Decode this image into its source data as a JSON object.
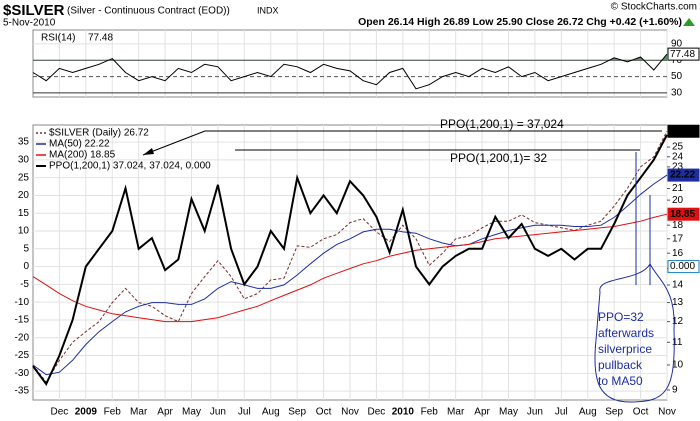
{
  "header": {
    "symbol": "$SILVER",
    "description": "(Silver - Continuous Contract (EOD))",
    "exchange": "INDX",
    "date": "5-Nov-2010",
    "quote": "Open 26.14 High 26.89 Low 25.90 Close 26.72 Chg +0.42 (+1.60%)",
    "copyright": "© StockCharts.com"
  },
  "chart_data": [
    {
      "type": "line",
      "title": "RSI(14)",
      "color": "#000000",
      "fill_color": "#5f8f5f",
      "threshold": 70,
      "grid": true,
      "categories": [
        null,
        null,
        "Dec",
        null,
        "2009",
        null,
        "Feb",
        null,
        "Mar",
        null,
        "Apr",
        null,
        "May",
        null,
        "Jun",
        null,
        "Jul",
        null,
        "Aug",
        null,
        "Sep",
        null,
        "Oct",
        null,
        "Nov",
        null,
        "Dec",
        null,
        "2010",
        null,
        "Feb",
        null,
        "Mar",
        null,
        "Apr",
        null,
        "May",
        null,
        "Jun",
        null,
        "Jul",
        null,
        "Aug",
        null,
        "Sep",
        null,
        "Oct",
        null,
        "Nov"
      ],
      "values": [
        55,
        45,
        60,
        55,
        60,
        65,
        72,
        55,
        45,
        50,
        45,
        60,
        55,
        65,
        62,
        45,
        50,
        55,
        50,
        65,
        62,
        55,
        65,
        60,
        57,
        45,
        40,
        55,
        60,
        35,
        40,
        50,
        55,
        50,
        60,
        55,
        62,
        50,
        55,
        45,
        50,
        55,
        60,
        65,
        73,
        68,
        74,
        58,
        77.48
      ],
      "ylim": [
        25,
        107
      ],
      "yticks": [
        90,
        70,
        50,
        30
      ]
    },
    {
      "type": "line",
      "grid": true,
      "categories": [
        null,
        null,
        "Dec",
        null,
        "2009",
        null,
        "Feb",
        null,
        "Mar",
        null,
        "Apr",
        null,
        "May",
        null,
        "Jun",
        null,
        "Jul",
        null,
        "Aug",
        null,
        "Sep",
        null,
        "Oct",
        null,
        "Nov",
        null,
        "Dec",
        null,
        "2010",
        null,
        "Feb",
        null,
        "Mar",
        null,
        "Apr",
        null,
        "May",
        null,
        "Jun",
        null,
        "Jul",
        null,
        "Aug",
        null,
        "Sep",
        null,
        "Oct",
        null,
        "Nov"
      ],
      "series": [
        {
          "name": "$SILVER (Daily) 26.72",
          "color": "#7a2a2a",
          "dashed": true,
          "axis": "y2",
          "values": [
            10.0,
            9.3,
            10.2,
            11.0,
            11.5,
            12.0,
            13.0,
            13.8,
            13.0,
            12.8,
            12.3,
            12.0,
            13.5,
            14.5,
            15.5,
            14.5,
            13.2,
            13.5,
            14.3,
            14.4,
            16.5,
            16.4,
            17.0,
            17.3,
            18.2,
            18.5,
            17.5,
            16.8,
            18.0,
            17.0,
            15.2,
            16.0,
            17.0,
            17.2,
            17.8,
            18.3,
            18.3,
            18.8,
            18.2,
            18.0,
            17.8,
            17.6,
            18.0,
            18.3,
            19.5,
            21.0,
            23.0,
            24.0,
            26.72
          ]
        },
        {
          "name": "MA(50) 22.22",
          "color": "#1c2ea0",
          "axis": "y2",
          "values": [
            10.0,
            9.6,
            9.7,
            10.2,
            10.9,
            11.5,
            12.0,
            12.5,
            12.8,
            13.0,
            13.0,
            12.9,
            12.9,
            13.2,
            13.8,
            14.2,
            14.0,
            13.8,
            13.8,
            14.0,
            14.6,
            15.3,
            16.0,
            16.6,
            17.0,
            17.5,
            17.7,
            17.7,
            17.5,
            17.4,
            17.0,
            16.7,
            16.5,
            16.6,
            17.0,
            17.3,
            17.6,
            17.8,
            18.0,
            18.0,
            18.0,
            17.9,
            17.9,
            18.0,
            18.6,
            19.5,
            20.5,
            21.4,
            22.22
          ]
        },
        {
          "name": "MA(200) 18.85",
          "color": "#e01010",
          "axis": "y2",
          "values": [
            14.5,
            14.0,
            13.5,
            13.1,
            12.8,
            12.6,
            12.4,
            12.3,
            12.2,
            12.1,
            12.0,
            12.0,
            12.0,
            12.1,
            12.2,
            12.4,
            12.6,
            12.8,
            13.1,
            13.4,
            13.7,
            14.0,
            14.4,
            14.7,
            15.0,
            15.3,
            15.5,
            15.8,
            16.0,
            16.2,
            16.3,
            16.4,
            16.5,
            16.6,
            16.8,
            17.0,
            17.1,
            17.2,
            17.3,
            17.4,
            17.5,
            17.6,
            17.7,
            17.8,
            17.9,
            18.1,
            18.3,
            18.6,
            18.85
          ]
        },
        {
          "name": "PPO(1,200,1) 37.024,",
          "color": "#000000",
          "thick": true,
          "values": [
            -28,
            -33,
            -25,
            -15,
            0,
            5,
            10,
            22,
            5,
            8,
            -1,
            2,
            19,
            10,
            23,
            5,
            -5,
            0,
            10,
            5,
            25,
            15,
            20,
            15,
            24,
            20,
            14,
            4,
            16,
            0,
            -5,
            0,
            3,
            5,
            5,
            14,
            8,
            12,
            5,
            3,
            5,
            2,
            5,
            5,
            12,
            20,
            25,
            30,
            37.024
          ]
        }
      ],
      "legend_extra": [
        {
          "text": "37.024,",
          "color": "#e01010"
        }
      ],
      "signal": {
        "value": 0,
        "label": "0.000",
        "color": "#1a7fbf"
      },
      "ylim": [
        -37.5,
        39.8
      ],
      "yticks": [
        35,
        30,
        25,
        20,
        15,
        10,
        5,
        0,
        -5,
        -10,
        -15,
        -20,
        -25,
        -30,
        -35
      ],
      "y2lim": [
        8.63,
        27.43
      ],
      "y2log": true,
      "y2ticks": [
        25,
        24,
        23,
        21,
        20,
        18,
        17,
        16,
        15,
        14,
        13,
        12,
        11,
        10,
        9
      ],
      "annotations": [
        "PPO(1,200,1) = 37,024",
        "PPO(1,200,1)= 32"
      ],
      "note": [
        "PPO=32",
        "afterwards",
        "silverprice",
        "pullback",
        "to MA50"
      ]
    }
  ]
}
